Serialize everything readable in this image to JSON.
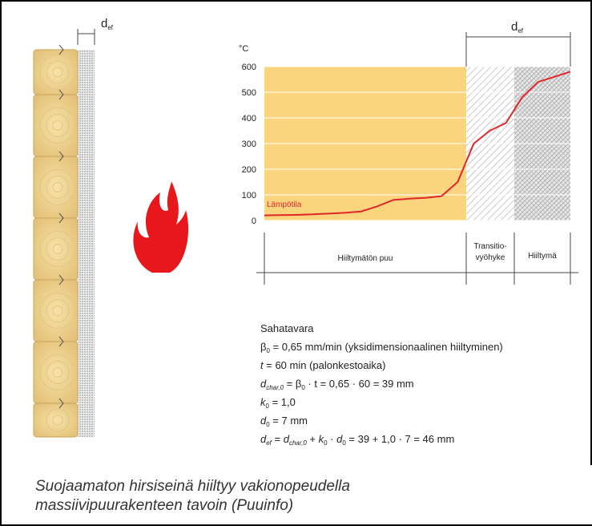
{
  "dimension_labels": [
    [
      "d",
      "ef"
    ],
    [
      "d",
      "ef"
    ]
  ],
  "chart_data": {
    "type": "line",
    "y_unit": "°C",
    "series_label": "Lämpötila",
    "color": "#e2262b",
    "categories": [
      null,
      null,
      null,
      null,
      null,
      null,
      null,
      null,
      null,
      null,
      null,
      null,
      null,
      null,
      null,
      null,
      null,
      null,
      null,
      null
    ],
    "values": [
      20,
      21,
      22,
      24,
      27,
      30,
      35,
      55,
      80,
      85,
      88,
      95,
      150,
      300,
      350,
      380,
      480,
      540,
      560,
      580
    ],
    "ylim": [
      0,
      600
    ],
    "yticks": [
      0,
      100,
      200,
      300,
      400,
      500,
      600
    ],
    "grid": true,
    "zones": [
      {
        "label": [
          "Hiiltymätön puu"
        ]
      },
      {
        "label": [
          "Transitio-",
          "vyöhyke"
        ]
      },
      {
        "label": [
          "Hiiltymä"
        ]
      }
    ]
  },
  "formulas": [
    [
      "Sahatavara"
    ],
    [
      "β",
      "0",
      " = 0,65 mm/min (yksidimensionaalinen hiiltyminen)"
    ],
    [
      "t",
      " = 60 min (palonkestoaika)"
    ],
    [
      "d",
      "char,0",
      " = ",
      "β",
      "0",
      " · t = 0,65 · 60 = 39 mm"
    ],
    [
      "k",
      "0",
      " = 1,0"
    ],
    [
      "d",
      "0",
      " = 7 mm"
    ],
    [
      "d",
      "ef",
      " = ",
      "d",
      "char,0",
      " + ",
      "k",
      "0",
      " · ",
      "d",
      "0",
      " = 39 + 1,0 · 7 = 46 mm"
    ]
  ],
  "caption": [
    "Suojaamaton hirsiseinä hiiltyy vakionopeudella",
    "massiivipuurakenteen tavoin (Puuinfo)"
  ]
}
